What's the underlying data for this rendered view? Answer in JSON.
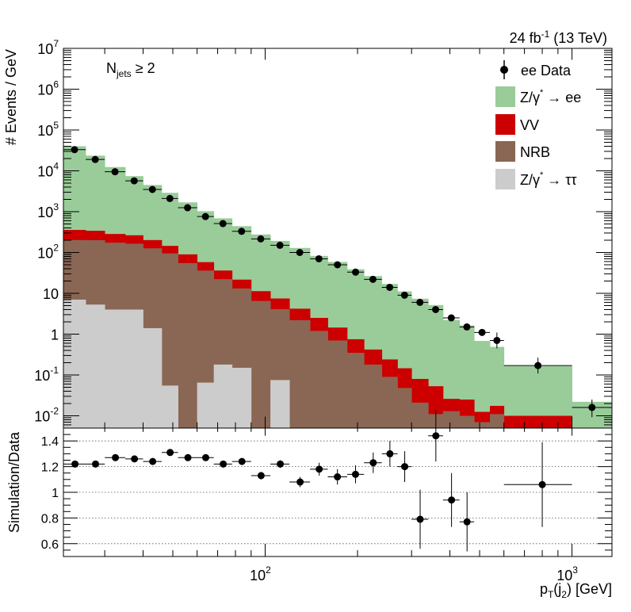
{
  "header": {
    "lumi_value": "24 fb",
    "lumi_exponent": "-1",
    "lumi_energy": " (13 TeV)"
  },
  "category": {
    "label_main": "N",
    "label_sub": "jets",
    "label_rel": " ≥ 2"
  },
  "legend": {
    "data": "ee Data",
    "zee_prefix": "Z/γ",
    "zee_star": "*",
    "zee_suffix": " → ee",
    "vv": "VV",
    "nrb": "NRB",
    "ztt_prefix": "Z/γ",
    "ztt_star": "*",
    "ztt_suffix": " → ττ"
  },
  "colors": {
    "zee": "#99cc99",
    "vv": "#cc0000",
    "nrb": "#8a6654",
    "ztt": "#cccccc",
    "data": "#000000",
    "grid": "#555555"
  },
  "axes": {
    "ylabel_top": "# Events / GeV",
    "ylabel_bottom": "Simulation/Data",
    "xlabel_main": "p",
    "xlabel_sub1": "T",
    "xlabel_mid": "(j",
    "xlabel_sub2": "2",
    "xlabel_end": ") [GeV]",
    "x_ticks": [
      {
        "base": "10",
        "exp": "2",
        "value": 100
      },
      {
        "base": "10",
        "exp": "3",
        "value": 1000
      }
    ],
    "y_ticks_top": [
      {
        "base": "10",
        "exp": "-2",
        "value": 0.01
      },
      {
        "base": "10",
        "exp": "-1",
        "value": 0.1
      },
      {
        "base": "1",
        "exp": "",
        "value": 1
      },
      {
        "base": "10",
        "exp": "",
        "value": 10
      },
      {
        "base": "10",
        "exp": "2",
        "value": 100
      },
      {
        "base": "10",
        "exp": "3",
        "value": 1000
      },
      {
        "base": "10",
        "exp": "4",
        "value": 10000
      },
      {
        "base": "10",
        "exp": "5",
        "value": 100000
      },
      {
        "base": "10",
        "exp": "6",
        "value": 1000000
      },
      {
        "base": "10",
        "exp": "7",
        "value": 10000000
      }
    ],
    "y_ticks_bottom": [
      "0.6",
      "0.8",
      "1",
      "1.2",
      "1.4"
    ]
  },
  "chart_data": [
    {
      "type": "bar",
      "subtype": "stacked-histogram",
      "xlabel": "p_T(j_2) [GeV]",
      "ylabel": "# Events / GeV",
      "xscale": "log",
      "yscale": "log",
      "xlim": [
        22,
        1350
      ],
      "ylim": [
        0.005,
        10000000
      ],
      "legend_position": "top-right",
      "bins": [
        [
          22,
          26
        ],
        [
          26,
          30
        ],
        [
          30,
          35
        ],
        [
          35,
          40
        ],
        [
          40,
          46
        ],
        [
          46,
          52
        ],
        [
          52,
          60
        ],
        [
          60,
          68
        ],
        [
          68,
          78
        ],
        [
          78,
          90
        ],
        [
          90,
          104
        ],
        [
          104,
          120
        ],
        [
          120,
          140
        ],
        [
          140,
          160
        ],
        [
          160,
          185
        ],
        [
          185,
          210
        ],
        [
          210,
          240
        ],
        [
          240,
          270
        ],
        [
          270,
          300
        ],
        [
          300,
          340
        ],
        [
          340,
          380
        ],
        [
          380,
          430
        ],
        [
          430,
          480
        ],
        [
          480,
          540
        ],
        [
          540,
          600
        ],
        [
          600,
          1000
        ],
        [
          1000,
          1350
        ]
      ],
      "series": [
        {
          "name": "Z/γ* → ττ",
          "values": [
            7,
            5.3,
            4,
            4,
            1.4,
            0.055,
            0,
            0.065,
            0.18,
            0.15,
            0,
            0.075,
            0,
            0,
            0,
            0,
            0,
            0,
            0,
            0,
            0,
            0,
            0,
            0,
            0,
            0,
            0
          ]
        },
        {
          "name": "NRB",
          "values": [
            195,
            195,
            170,
            160,
            125,
            95,
            55,
            36,
            22,
            13,
            6.5,
            4,
            2.2,
            1.2,
            0.7,
            0.35,
            0.18,
            0.09,
            0.048,
            0.021,
            0.011,
            0.013,
            0.01,
            0.007,
            0.011,
            0.0045,
            0.0045
          ]
        },
        {
          "name": "VV",
          "values": [
            155,
            140,
            110,
            100,
            75,
            50,
            35,
            22,
            14,
            8.5,
            4.8,
            3.4,
            2,
            1.3,
            0.75,
            0.4,
            0.24,
            0.15,
            0.098,
            0.059,
            0.042,
            0.013,
            0.015,
            0.0055,
            0.0065,
            0.0055,
            0
          ]
        },
        {
          "name": "Z/γ* → ee",
          "values": [
            39600,
            23200,
            12100,
            7150,
            4300,
            2750,
            1600,
            970,
            650,
            420,
            265,
            185,
            125,
            80,
            57,
            38,
            26,
            16.7,
            11,
            7.3,
            5.1,
            2.2,
            1.6,
            0.67,
            0.47,
            0.155,
            0.0175
          ]
        }
      ],
      "data": {
        "name": "ee Data",
        "values": [
          33000,
          19000,
          9500,
          5700,
          3500,
          2100,
          1250,
          760,
          510,
          330,
          215,
          150,
          100,
          70,
          50,
          33,
          22,
          14,
          9,
          6,
          4,
          2.5,
          1.5,
          1.1,
          0.7,
          0.17,
          0.016
        ]
      },
      "annotations": [
        "24 fb-1 (13 TeV)",
        "N_jets ≥ 2"
      ]
    },
    {
      "type": "scatter",
      "xlabel": "p_T(j_2) [GeV]",
      "ylabel": "Simulation/Data",
      "xscale": "log",
      "xlim": [
        22,
        1350
      ],
      "ylim": [
        0.5,
        1.5
      ],
      "grid": true,
      "points": [
        {
          "x": 24,
          "y": 1.22,
          "err": 0.01
        },
        {
          "x": 28,
          "y": 1.22,
          "err": 0.01
        },
        {
          "x": 32.5,
          "y": 1.27,
          "err": 0.01
        },
        {
          "x": 37.5,
          "y": 1.26,
          "err": 0.01
        },
        {
          "x": 43,
          "y": 1.24,
          "err": 0.01
        },
        {
          "x": 49,
          "y": 1.31,
          "err": 0.015
        },
        {
          "x": 56,
          "y": 1.27,
          "err": 0.015
        },
        {
          "x": 64,
          "y": 1.27,
          "err": 0.015
        },
        {
          "x": 73,
          "y": 1.22,
          "err": 0.02
        },
        {
          "x": 84,
          "y": 1.24,
          "err": 0.025
        },
        {
          "x": 97,
          "y": 1.13,
          "err": 0.03
        },
        {
          "x": 112,
          "y": 1.22,
          "err": 0.03
        },
        {
          "x": 130,
          "y": 1.08,
          "err": 0.04
        },
        {
          "x": 150,
          "y": 1.18,
          "err": 0.05
        },
        {
          "x": 172,
          "y": 1.12,
          "err": 0.06
        },
        {
          "x": 197,
          "y": 1.14,
          "err": 0.07
        },
        {
          "x": 225,
          "y": 1.23,
          "err": 0.08
        },
        {
          "x": 255,
          "y": 1.3,
          "err": 0.1
        },
        {
          "x": 285,
          "y": 1.2,
          "err": 0.12
        },
        {
          "x": 320,
          "y": 0.79,
          "err": 0.23
        },
        {
          "x": 360,
          "y": 1.44,
          "err": 0.2
        },
        {
          "x": 405,
          "y": 0.94,
          "err": 0.21
        },
        {
          "x": 455,
          "y": 0.77,
          "err": 0.23
        },
        {
          "x": 800,
          "y": 1.06,
          "err": 0.33
        }
      ]
    }
  ]
}
